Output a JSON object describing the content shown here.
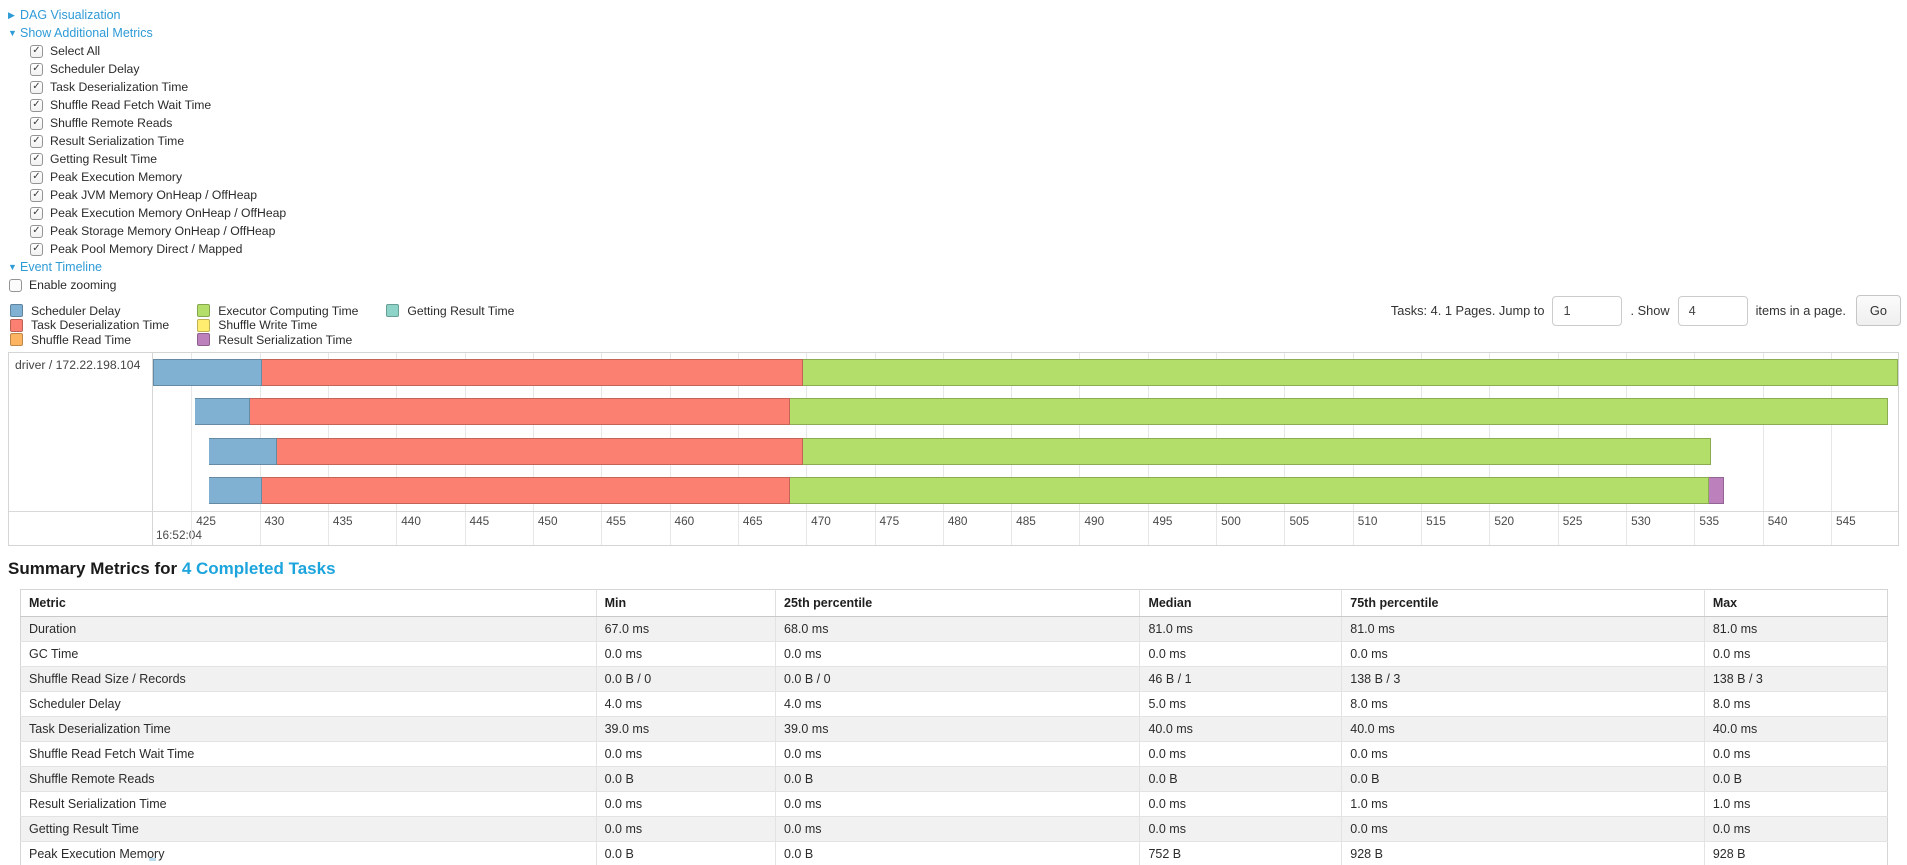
{
  "colors": {
    "link": "#2e9bd6",
    "heading_link": "#1ca4dc",
    "scheduler_delay": "#80b1d3",
    "task_deserialization": "#fb8072",
    "shuffle_read": "#fdb462",
    "executor_computing": "#b3de69",
    "shuffle_write": "#ffed6f",
    "result_serialization": "#bc80bd",
    "getting_result": "#8dd3c7"
  },
  "sections": {
    "dag": {
      "label": "DAG Visualization",
      "state": "collapsed",
      "arrow": "▶"
    },
    "additional_metrics": {
      "label": "Show Additional Metrics",
      "state": "expanded",
      "arrow": "▼"
    },
    "event_timeline": {
      "label": "Event Timeline",
      "state": "expanded",
      "arrow": "▼"
    }
  },
  "metric_checkboxes": [
    {
      "label": "Select All",
      "checked": true
    },
    {
      "label": "Scheduler Delay",
      "checked": true
    },
    {
      "label": "Task Deserialization Time",
      "checked": true
    },
    {
      "label": "Shuffle Read Fetch Wait Time",
      "checked": true
    },
    {
      "label": "Shuffle Remote Reads",
      "checked": true
    },
    {
      "label": "Result Serialization Time",
      "checked": true
    },
    {
      "label": "Getting Result Time",
      "checked": true
    },
    {
      "label": "Peak Execution Memory",
      "checked": true
    },
    {
      "label": "Peak JVM Memory OnHeap / OffHeap",
      "checked": true
    },
    {
      "label": "Peak Execution Memory OnHeap / OffHeap",
      "checked": true
    },
    {
      "label": "Peak Storage Memory OnHeap / OffHeap",
      "checked": true
    },
    {
      "label": "Peak Pool Memory Direct / Mapped",
      "checked": true
    }
  ],
  "enable_zooming": {
    "label": "Enable zooming",
    "checked": false
  },
  "legend_columns": [
    [
      {
        "label": "Scheduler Delay",
        "color_key": "scheduler_delay"
      },
      {
        "label": "Task Deserialization Time",
        "color_key": "task_deserialization"
      },
      {
        "label": "Shuffle Read Time",
        "color_key": "shuffle_read"
      }
    ],
    [
      {
        "label": "Executor Computing Time",
        "color_key": "executor_computing"
      },
      {
        "label": "Shuffle Write Time",
        "color_key": "shuffle_write"
      },
      {
        "label": "Result Serialization Time",
        "color_key": "result_serialization"
      }
    ],
    [
      {
        "label": "Getting Result Time",
        "color_key": "getting_result"
      }
    ]
  ],
  "pagination": {
    "tasks_text": "Tasks: 4. 1 Pages. Jump to",
    "jump_value": "1",
    "show_text": ". Show",
    "show_value": "4",
    "items_text": "items in a page.",
    "go_label": "Go"
  },
  "chart_data": {
    "type": "timeline",
    "group_label": "driver / 172.22.198.104",
    "axis": {
      "min": 422.2,
      "max": 549.9,
      "tick_start": 425,
      "tick_step": 5,
      "tick_end": 550,
      "major_label": "16:52:04",
      "unit": "ms within 16:52:04"
    },
    "tasks": [
      {
        "segments": [
          {
            "metric": "scheduler_delay",
            "start": 422.2,
            "end": 430.2
          },
          {
            "metric": "task_deserialization",
            "start": 430.2,
            "end": 469.8
          },
          {
            "metric": "executor_computing",
            "start": 469.8,
            "end": 549.9
          }
        ]
      },
      {
        "segments": [
          {
            "metric": "scheduler_delay",
            "start": 425.3,
            "end": 429.3
          },
          {
            "metric": "task_deserialization",
            "start": 429.3,
            "end": 468.8
          },
          {
            "metric": "executor_computing",
            "start": 468.8,
            "end": 549.2
          }
        ]
      },
      {
        "segments": [
          {
            "metric": "scheduler_delay",
            "start": 426.3,
            "end": 431.3
          },
          {
            "metric": "task_deserialization",
            "start": 431.3,
            "end": 469.8
          },
          {
            "metric": "executor_computing",
            "start": 469.8,
            "end": 536.2
          }
        ]
      },
      {
        "segments": [
          {
            "metric": "scheduler_delay",
            "start": 426.3,
            "end": 430.2
          },
          {
            "metric": "task_deserialization",
            "start": 430.2,
            "end": 468.8
          },
          {
            "metric": "executor_computing",
            "start": 468.8,
            "end": 536.1
          },
          {
            "metric": "result_serialization",
            "start": 536.1,
            "end": 537.2
          }
        ]
      }
    ]
  },
  "summary": {
    "title_prefix": "Summary Metrics for ",
    "title_link": "4 Completed Tasks",
    "columns": [
      "Metric",
      "Min",
      "25th percentile",
      "Median",
      "75th percentile",
      "Max"
    ],
    "col_widths": [
      "30.8%",
      "9.6%",
      "19.5%",
      "10.8%",
      "19.4%",
      "9.8%"
    ],
    "rows": [
      [
        "Duration",
        "67.0 ms",
        "68.0 ms",
        "81.0 ms",
        "81.0 ms",
        "81.0 ms"
      ],
      [
        "GC Time",
        "0.0 ms",
        "0.0 ms",
        "0.0 ms",
        "0.0 ms",
        "0.0 ms"
      ],
      [
        "Shuffle Read Size / Records",
        "0.0 B / 0",
        "0.0 B / 0",
        "46 B / 1",
        "138 B / 3",
        "138 B / 3"
      ],
      [
        "Scheduler Delay",
        "4.0 ms",
        "4.0 ms",
        "5.0 ms",
        "8.0 ms",
        "8.0 ms"
      ],
      [
        "Task Deserialization Time",
        "39.0 ms",
        "39.0 ms",
        "40.0 ms",
        "40.0 ms",
        "40.0 ms"
      ],
      [
        "Shuffle Read Fetch Wait Time",
        "0.0 ms",
        "0.0 ms",
        "0.0 ms",
        "0.0 ms",
        "0.0 ms"
      ],
      [
        "Shuffle Remote Reads",
        "0.0 B",
        "0.0 B",
        "0.0 B",
        "0.0 B",
        "0.0 B"
      ],
      [
        "Result Serialization Time",
        "0.0 ms",
        "0.0 ms",
        "0.0 ms",
        "1.0 ms",
        "1.0 ms"
      ],
      [
        "Getting Result Time",
        "0.0 ms",
        "0.0 ms",
        "0.0 ms",
        "0.0 ms",
        "0.0 ms"
      ],
      [
        "Peak Execution Memory",
        "0.0 B",
        "0.0 B",
        "752 B",
        "928 B",
        "928 B"
      ]
    ]
  }
}
